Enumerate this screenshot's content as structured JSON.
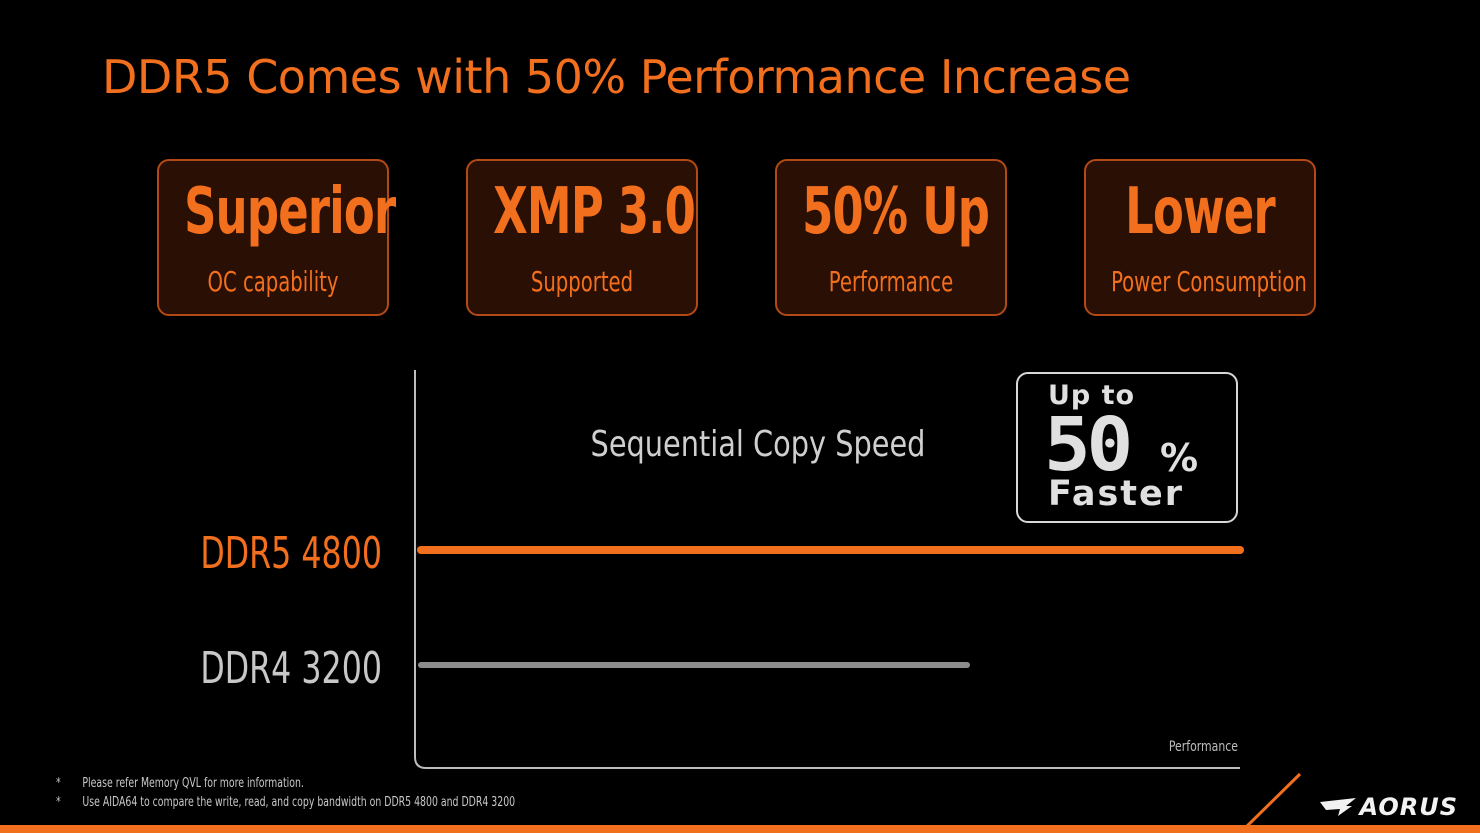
{
  "title": "DDR5 Comes with 50% Performance Increase",
  "cards": [
    {
      "big": "Superior",
      "small": "OC capability"
    },
    {
      "big": "XMP 3.0",
      "small": "Supported"
    },
    {
      "big": "50% Up",
      "small": "Performance"
    },
    {
      "big": "Lower",
      "small": "Power Consumption"
    }
  ],
  "badge": {
    "line1": "Up to",
    "number": "50",
    "unit": "%",
    "line2": "Faster"
  },
  "chart_data": {
    "type": "bar",
    "orientation": "horizontal",
    "title": "Sequential Copy Speed",
    "xlabel": "Performance",
    "categories": [
      "DDR5 4800",
      "DDR4 3200"
    ],
    "values": [
      1.5,
      1.0
    ],
    "xlim": [
      0,
      1.5
    ],
    "colors": [
      "#f26f1e",
      "#8c8c8c"
    ],
    "grid": false
  },
  "footnotes": [
    {
      "marker": "*",
      "text": "Please refer Memory QVL for more information."
    },
    {
      "marker": "*",
      "text": "Use AIDA64 to compare the write, read, and copy bandwidth on DDR5 4800 and DDR4 3200"
    }
  ],
  "brand": {
    "logo": "AORUS",
    "accent": "#f26f1e"
  }
}
